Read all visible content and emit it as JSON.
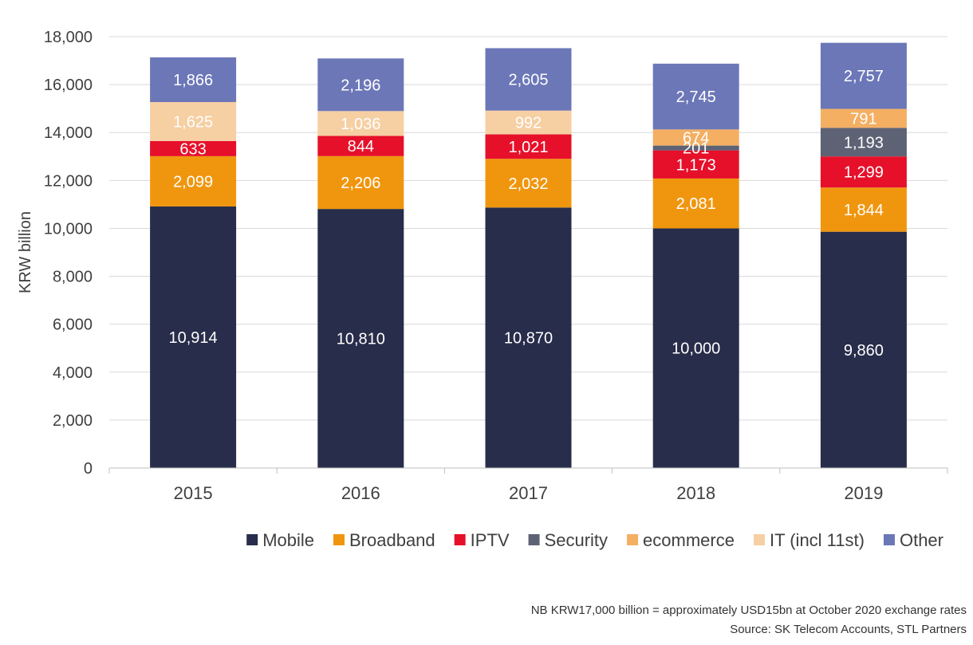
{
  "chart_data": {
    "type": "bar",
    "stacked": true,
    "categories": [
      "2015",
      "2016",
      "2017",
      "2018",
      "2019"
    ],
    "ylabel": "KRW billion",
    "xlabel": "",
    "title": "",
    "ylim": [
      0,
      18000
    ],
    "yticks": [
      "0",
      "2,000",
      "4,000",
      "6,000",
      "8,000",
      "10,000",
      "12,000",
      "14,000",
      "16,000",
      "18,000"
    ],
    "grid": true,
    "legend_position": "bottom",
    "series": [
      {
        "name": "Mobile",
        "color": "#272D4A",
        "values": [
          10914,
          10810,
          10870,
          10000,
          9860
        ],
        "labels": [
          "10,914",
          "10,810",
          "10,870",
          "10,000",
          "9,860"
        ]
      },
      {
        "name": "Broadband",
        "color": "#F0960E",
        "values": [
          2099,
          2206,
          2032,
          2081,
          1844
        ],
        "labels": [
          "2,099",
          "2,206",
          "2,032",
          "2,081",
          "1,844"
        ]
      },
      {
        "name": "IPTV",
        "color": "#E6102A",
        "values": [
          633,
          844,
          1021,
          1173,
          1299
        ],
        "labels": [
          "633",
          "844",
          "1,021",
          "1,173",
          "1,299"
        ]
      },
      {
        "name": "Security",
        "color": "#5E6275",
        "values": [
          0,
          0,
          0,
          201,
          1193
        ],
        "labels": [
          "",
          "",
          "",
          "201",
          "1,193"
        ]
      },
      {
        "name": "ecommerce",
        "color": "#F4AF63",
        "values": [
          0,
          0,
          0,
          674,
          791
        ],
        "labels": [
          "",
          "",
          "",
          "674",
          "791"
        ]
      },
      {
        "name": "IT (incl 11st)",
        "color": "#F6CFA3",
        "values": [
          1625,
          1036,
          992,
          0,
          0
        ],
        "labels": [
          "1,625",
          "1,036",
          "992",
          "",
          ""
        ]
      },
      {
        "name": "Other",
        "color": "#6C77B8",
        "values": [
          1866,
          2196,
          2605,
          2745,
          2757
        ],
        "labels": [
          "1,866",
          "2,196",
          "2,605",
          "2,745",
          "2,757"
        ]
      }
    ]
  },
  "notes": {
    "line1": "NB KRW17,000 billion = approximately USD15bn at October 2020 exchange rates",
    "line2": "Source: SK Telecom Accounts, STL Partners"
  }
}
